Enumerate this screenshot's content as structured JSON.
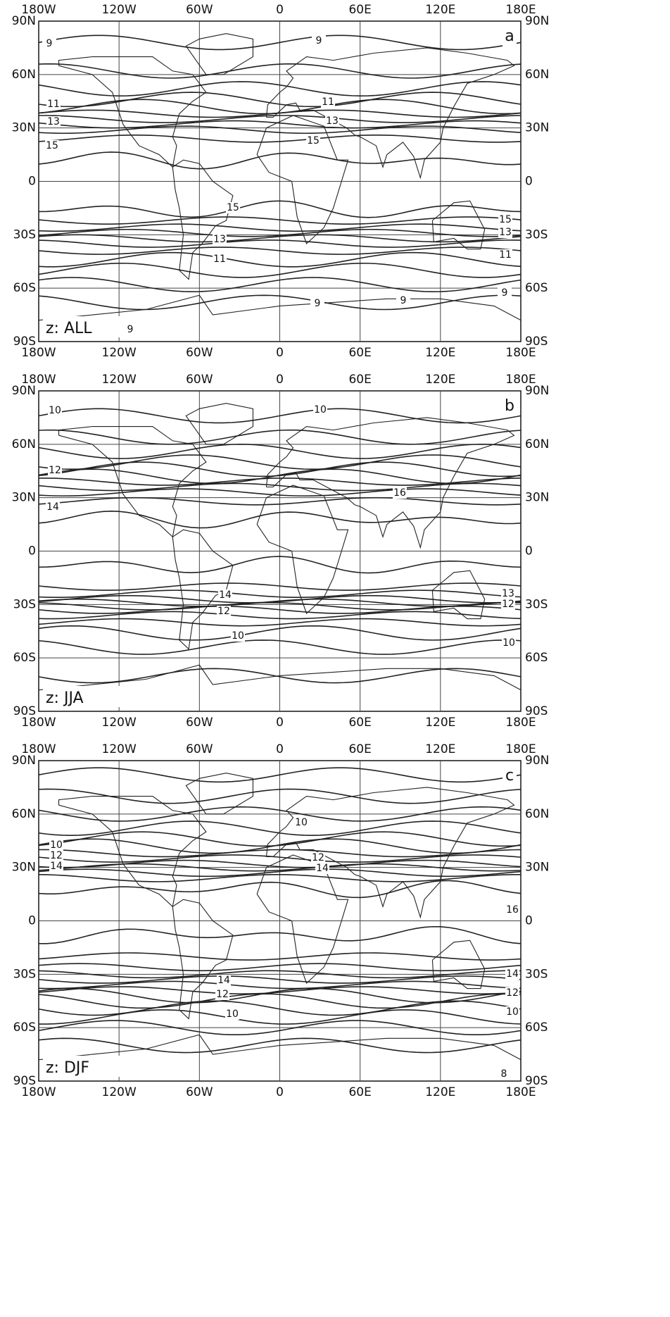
{
  "longitude_labels": [
    "180W",
    "120W",
    "60W",
    "0",
    "60E",
    "120E",
    "180E"
  ],
  "latitude_labels": [
    "90N",
    "60N",
    "30N",
    "0",
    "30S",
    "60S",
    "90S"
  ],
  "panels": [
    {
      "letter": "a",
      "label": "z: ALL",
      "contour_labels": [
        "9",
        "9",
        "11",
        "11",
        "13",
        "13",
        "15",
        "15",
        "15",
        "15",
        "13",
        "13",
        "11",
        "11",
        "9",
        "9",
        "9",
        "9"
      ]
    },
    {
      "letter": "b",
      "label": "z: JJA",
      "contour_labels": [
        "10",
        "10",
        "12",
        "14",
        "16",
        "14",
        "12",
        "10",
        "10",
        "13",
        "12"
      ]
    },
    {
      "letter": "c",
      "label": "z: DJF",
      "contour_labels": [
        "10",
        "12",
        "14",
        "10",
        "12",
        "14",
        "16",
        "14",
        "12",
        "10",
        "14",
        "12",
        "10",
        "8"
      ]
    }
  ]
}
